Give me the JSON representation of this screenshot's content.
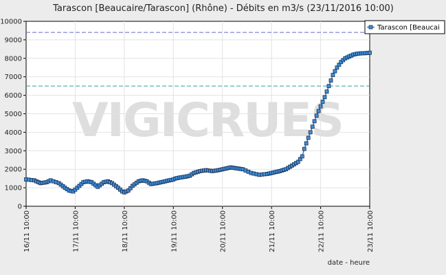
{
  "chart_data": {
    "type": "line",
    "title": "Tarascon [Beaucaire/Tarascon] (Rhône) - Débits en m3/s (23/11/2016 10:00)",
    "xlabel": "date - heure",
    "ylabel": "",
    "ylim": [
      0,
      10000
    ],
    "y_ticks": [
      0,
      1000,
      2000,
      3000,
      4000,
      5000,
      6000,
      7000,
      8000,
      9000,
      10000
    ],
    "x_range_hours": [
      0,
      168
    ],
    "x_tick_hours": [
      0,
      24,
      48,
      72,
      96,
      120,
      144,
      168
    ],
    "x_tick_labels": [
      "16/11 10:00",
      "17/11 10:00",
      "18/11 10:00",
      "19/11 10:00",
      "20/11 10:00",
      "21/11 10:00",
      "22/11 10:00",
      "23/11 10:00"
    ],
    "grid": true,
    "legend_position": "top-right",
    "watermark": "VIGICRUES",
    "thresholds": [
      {
        "value": 9400,
        "color": "#6666cc"
      },
      {
        "value": 6500,
        "color": "#3399aa"
      }
    ],
    "series": [
      {
        "name": "Tarascon [Beaucai",
        "line_color": "#2a5d9a",
        "marker_fill": "#3d8fd8",
        "x": [
          0,
          4,
          7,
          10,
          12,
          16,
          19,
          21,
          23,
          24,
          27,
          28,
          30,
          32,
          35,
          38,
          40,
          42,
          45,
          47,
          48,
          50,
          52,
          55,
          57,
          59,
          61,
          64,
          66,
          68,
          70,
          72,
          73,
          75,
          78,
          80,
          82,
          85,
          88,
          91,
          94,
          96,
          98,
          100,
          103,
          106,
          110,
          114,
          118,
          120,
          122,
          124,
          127,
          130,
          133,
          135,
          136,
          138,
          140,
          142,
          144,
          146,
          148,
          150,
          152,
          154,
          156,
          158,
          160,
          162,
          164,
          166,
          168
        ],
        "y": [
          1450,
          1400,
          1250,
          1300,
          1400,
          1250,
          1000,
          850,
          800,
          900,
          1200,
          1300,
          1350,
          1300,
          1050,
          1300,
          1350,
          1250,
          1000,
          800,
          750,
          850,
          1100,
          1350,
          1400,
          1350,
          1200,
          1250,
          1300,
          1350,
          1400,
          1450,
          1500,
          1550,
          1600,
          1650,
          1800,
          1900,
          1950,
          1900,
          1950,
          2000,
          2050,
          2100,
          2050,
          2000,
          1800,
          1700,
          1750,
          1800,
          1850,
          1900,
          2000,
          2200,
          2400,
          2700,
          3100,
          3700,
          4300,
          4900,
          5400,
          5900,
          6500,
          7100,
          7500,
          7800,
          8000,
          8100,
          8200,
          8250,
          8270,
          8280,
          8300
        ]
      }
    ]
  }
}
